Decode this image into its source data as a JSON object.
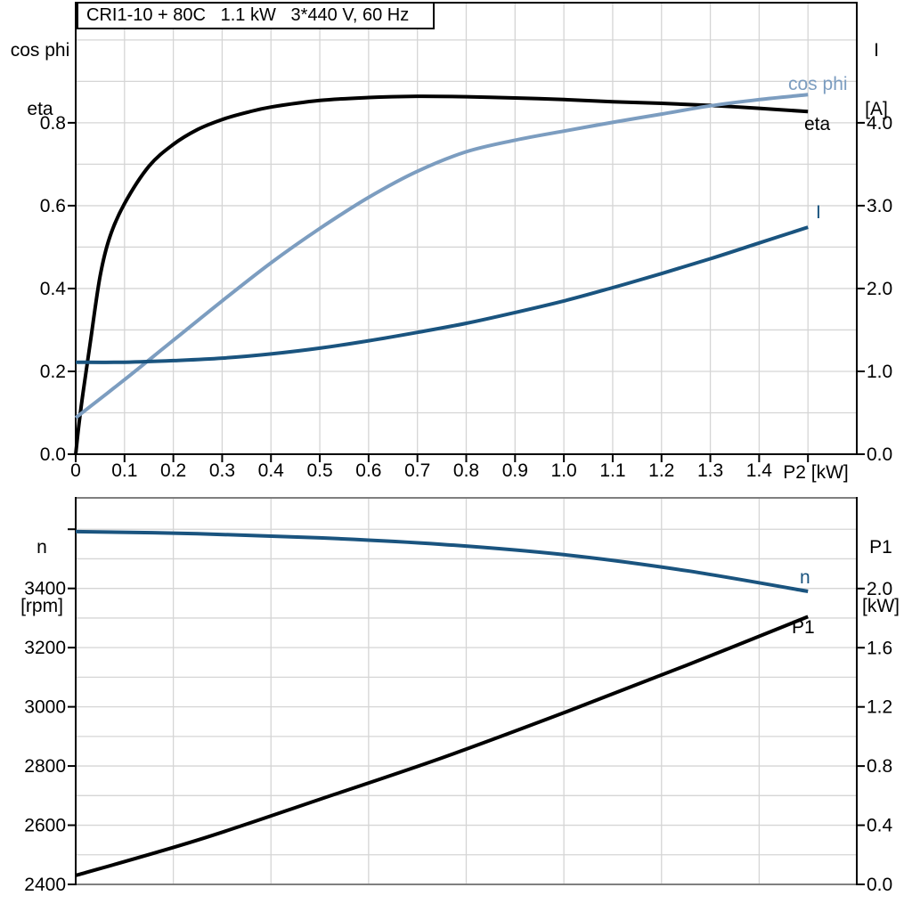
{
  "colors": {
    "black": "#000000",
    "dark_blue": "#1A547F",
    "light_blue": "#7C9DC0",
    "grid": "#D5D5D5",
    "frame_gray": "#7F7F7F",
    "background": "#FFFFFF"
  },
  "chart_data": [
    {
      "type": "line",
      "title": "CRI1-10 + 80C   1.1 kW   3*440 V, 60 Hz",
      "legend_position": "curve-end-labels",
      "grid": true,
      "x_axis": {
        "label": "P2 [kW]",
        "range": [
          0,
          1.6
        ],
        "grid_step": 0.1,
        "ticks": [
          0,
          0.1,
          0.2,
          0.3,
          0.4,
          0.5,
          0.6,
          0.7,
          0.8,
          0.9,
          1.0,
          1.1,
          1.2,
          1.3,
          1.4,
          1.5
        ],
        "tick_labels": [
          "0",
          "0.1",
          "0.2",
          "0.3",
          "0.4",
          "0.5",
          "0.6",
          "0.7",
          "0.8",
          "0.9",
          "1.0",
          "1.1",
          "1.2",
          "1.3",
          "1.4",
          ""
        ]
      },
      "left_axis": {
        "header_line1": "cos phi",
        "header_line2": "eta",
        "range": [
          0,
          1.09
        ],
        "grid_step": 0.1,
        "ticks": [
          0,
          0.2,
          0.4,
          0.6,
          0.8
        ],
        "tick_labels": [
          "0.0",
          "0.2",
          "0.4",
          "0.6",
          "0.8"
        ]
      },
      "right_axis": {
        "header_line1": "I",
        "header_line2": "[A]",
        "range": [
          0,
          5.45
        ],
        "ticks": [
          0,
          1,
          2,
          3,
          4
        ],
        "tick_labels": [
          "0.0",
          "1.0",
          "2.0",
          "3.0",
          "4.0"
        ]
      },
      "series": [
        {
          "name": "eta",
          "label": "eta",
          "axis": "left",
          "color_key": "black",
          "width": 4,
          "points": [
            [
              0,
              0
            ],
            [
              0.007,
              0.075
            ],
            [
              0.015,
              0.148
            ],
            [
              0.03,
              0.27
            ],
            [
              0.05,
              0.43
            ],
            [
              0.07,
              0.525
            ],
            [
              0.1,
              0.605
            ],
            [
              0.15,
              0.695
            ],
            [
              0.2,
              0.748
            ],
            [
              0.25,
              0.784
            ],
            [
              0.3,
              0.808
            ],
            [
              0.35,
              0.825
            ],
            [
              0.4,
              0.838
            ],
            [
              0.5,
              0.854
            ],
            [
              0.6,
              0.861
            ],
            [
              0.7,
              0.864
            ],
            [
              0.8,
              0.863
            ],
            [
              0.9,
              0.86
            ],
            [
              1.0,
              0.856
            ],
            [
              1.1,
              0.851
            ],
            [
              1.2,
              0.847
            ],
            [
              1.3,
              0.842
            ],
            [
              1.4,
              0.835
            ],
            [
              1.5,
              0.827
            ]
          ]
        },
        {
          "name": "cos phi",
          "label": "cos phi",
          "axis": "left",
          "color_key": "light_blue",
          "width": 4,
          "points": [
            [
              0,
              0.088
            ],
            [
              0.1,
              0.18
            ],
            [
              0.2,
              0.275
            ],
            [
              0.3,
              0.37
            ],
            [
              0.4,
              0.462
            ],
            [
              0.5,
              0.545
            ],
            [
              0.6,
              0.62
            ],
            [
              0.7,
              0.683
            ],
            [
              0.8,
              0.73
            ],
            [
              0.9,
              0.758
            ],
            [
              1.0,
              0.78
            ],
            [
              1.1,
              0.801
            ],
            [
              1.2,
              0.821
            ],
            [
              1.3,
              0.841
            ],
            [
              1.4,
              0.856
            ],
            [
              1.5,
              0.868
            ]
          ]
        },
        {
          "name": "I",
          "label": "I",
          "axis": "right",
          "color_key": "dark_blue",
          "width": 4,
          "points": [
            [
              0,
              1.11
            ],
            [
              0.1,
              1.11
            ],
            [
              0.2,
              1.13
            ],
            [
              0.3,
              1.16
            ],
            [
              0.4,
              1.21
            ],
            [
              0.5,
              1.28
            ],
            [
              0.6,
              1.37
            ],
            [
              0.7,
              1.47
            ],
            [
              0.8,
              1.58
            ],
            [
              0.9,
              1.71
            ],
            [
              1.0,
              1.85
            ],
            [
              1.1,
              2.01
            ],
            [
              1.2,
              2.18
            ],
            [
              1.3,
              2.36
            ],
            [
              1.4,
              2.55
            ],
            [
              1.5,
              2.74
            ]
          ]
        }
      ]
    },
    {
      "type": "line",
      "title": "",
      "legend_position": "curve-end-labels",
      "grid": true,
      "x_axis": {
        "label": "",
        "range": [
          0,
          1.6
        ],
        "grid_step": 0.2,
        "ticks": [],
        "tick_labels": []
      },
      "left_axis": {
        "header_line1": "n",
        "header_line2": "[rpm]",
        "range": [
          2400,
          3706
        ],
        "grid_step": 100,
        "ticks": [
          2400,
          2600,
          2800,
          3000,
          3200,
          3400,
          3600
        ],
        "tick_labels": [
          "2400",
          "2600",
          "2800",
          "3000",
          "3200",
          "3400",
          ""
        ]
      },
      "right_axis": {
        "header_line1": "P1",
        "header_line2": "[kW]",
        "range": [
          0,
          2.613
        ],
        "ticks": [
          0,
          0.4,
          0.8,
          1.2,
          1.6,
          2.0
        ],
        "tick_labels": [
          "0.0",
          "0.4",
          "0.8",
          "1.2",
          "1.6",
          "2.0"
        ]
      },
      "series": [
        {
          "name": "n",
          "label": "n",
          "axis": "left",
          "color_key": "dark_blue",
          "width": 4,
          "points": [
            [
              0,
              3592
            ],
            [
              0.25,
              3585
            ],
            [
              0.5,
              3571
            ],
            [
              0.75,
              3549
            ],
            [
              1.0,
              3514
            ],
            [
              1.25,
              3460
            ],
            [
              1.5,
              3390
            ]
          ]
        },
        {
          "name": "P1",
          "label": "P1",
          "axis": "right",
          "color_key": "black",
          "width": 4,
          "points": [
            [
              0,
              0.06
            ],
            [
              0.25,
              0.3
            ],
            [
              0.5,
              0.575
            ],
            [
              0.75,
              0.855
            ],
            [
              1.0,
              1.16
            ],
            [
              1.25,
              1.48
            ],
            [
              1.5,
              1.81
            ]
          ]
        }
      ]
    }
  ]
}
